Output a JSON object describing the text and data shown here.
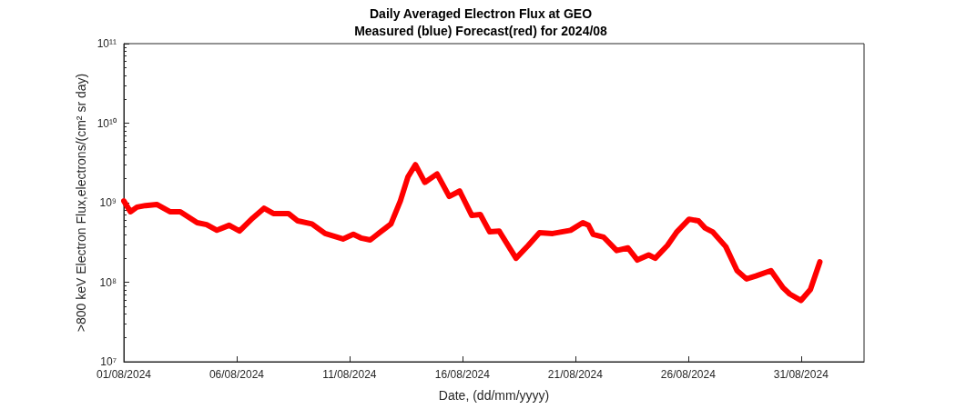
{
  "chart_data": {
    "type": "line",
    "title": "Daily Averaged Electron Flux at GEO",
    "subtitle": "Measured (blue) Forecast(red) for 2024/08",
    "xlabel": "Date, (dd/mm/yyyy)",
    "ylabel": ">800 keV Electron Flux,electrons/(cm² sr day)",
    "x": [
      "2024-08-01T00:00",
      "2024-08-01T07:00",
      "2024-08-01T14:00",
      "2024-08-01T23:00",
      "2024-08-02T11:00",
      "2024-08-03T01:00",
      "2024-08-03T12:00",
      "2024-08-04T06:00",
      "2024-08-04T16:00",
      "2024-08-05T03:00",
      "2024-08-05T16:00",
      "2024-08-06T03:00",
      "2024-08-06T17:00",
      "2024-08-07T05:00",
      "2024-08-07T15:00",
      "2024-08-08T07:00",
      "2024-08-08T17:00",
      "2024-08-09T08:00",
      "2024-08-09T22:00",
      "2024-08-10T17:00",
      "2024-08-11T04:00",
      "2024-08-11T12:00",
      "2024-08-11T22:00",
      "2024-08-12T08:00",
      "2024-08-12T20:00",
      "2024-08-13T06:00",
      "2024-08-13T14:00",
      "2024-08-13T22:00",
      "2024-08-14T08:00",
      "2024-08-14T21:00",
      "2024-08-15T10:00",
      "2024-08-15T21:00",
      "2024-08-16T10:00",
      "2024-08-16T19:00",
      "2024-08-17T05:00",
      "2024-08-17T15:00",
      "2024-08-18T09:00",
      "2024-08-18T22:00",
      "2024-08-19T10:00",
      "2024-08-20T00:00",
      "2024-08-20T19:00",
      "2024-08-21T08:00",
      "2024-08-21T14:00",
      "2024-08-21T19:00",
      "2024-08-22T06:00",
      "2024-08-22T20:00",
      "2024-08-23T08:00",
      "2024-08-23T18:00",
      "2024-08-24T06:00",
      "2024-08-24T13:00",
      "2024-08-25T02:00",
      "2024-08-25T12:00",
      "2024-08-26T01:00",
      "2024-08-26T11:00",
      "2024-08-26T18:00",
      "2024-08-27T02:00",
      "2024-08-27T16:00",
      "2024-08-28T04:00",
      "2024-08-28T14:00",
      "2024-08-29T00:00",
      "2024-08-29T16:00",
      "2024-08-30T05:00",
      "2024-08-30T12:00",
      "2024-08-31T00:00",
      "2024-08-31T10:00",
      "2024-08-31T20:00"
    ],
    "series": [
      {
        "color": "#ff0000",
        "values": [
          1050000000.0,
          770000000.0,
          880000000.0,
          920000000.0,
          950000000.0,
          770000000.0,
          770000000.0,
          560000000.0,
          530000000.0,
          450000000.0,
          520000000.0,
          440000000.0,
          640000000.0,
          850000000.0,
          730000000.0,
          730000000.0,
          590000000.0,
          540000000.0,
          410000000.0,
          350000000.0,
          400000000.0,
          360000000.0,
          340000000.0,
          420000000.0,
          540000000.0,
          1050000000.0,
          2100000000.0,
          3000000000.0,
          1800000000.0,
          2300000000.0,
          1200000000.0,
          1400000000.0,
          690000000.0,
          710000000.0,
          430000000.0,
          440000000.0,
          200000000.0,
          290000000.0,
          420000000.0,
          410000000.0,
          450000000.0,
          560000000.0,
          520000000.0,
          400000000.0,
          370000000.0,
          250000000.0,
          270000000.0,
          190000000.0,
          220000000.0,
          200000000.0,
          290000000.0,
          430000000.0,
          620000000.0,
          590000000.0,
          480000000.0,
          430000000.0,
          280000000.0,
          140000000.0,
          110000000.0,
          120000000.0,
          140000000.0,
          85000000.0,
          71000000.0,
          59000000.0,
          81000000.0,
          180000000.0
        ]
      }
    ],
    "xlim": [
      "2024-08-01T00:00",
      "2024-09-02T19:00"
    ],
    "xticks": [
      {
        "value": "2024-08-01T00:00",
        "label": "01/08/2024"
      },
      {
        "value": "2024-08-06T00:00",
        "label": "06/08/2024"
      },
      {
        "value": "2024-08-11T00:00",
        "label": "11/08/2024"
      },
      {
        "value": "2024-08-16T00:00",
        "label": "16/08/2024"
      },
      {
        "value": "2024-08-21T00:00",
        "label": "21/08/2024"
      },
      {
        "value": "2024-08-26T00:00",
        "label": "26/08/2024"
      },
      {
        "value": "2024-08-31T00:00",
        "label": "31/08/2024"
      }
    ],
    "ylim": [
      10000000.0,
      100000000000.0
    ],
    "yticks": [
      {
        "value": 10000000.0,
        "label": "10⁷"
      },
      {
        "value": 100000000.0,
        "label": "10⁸"
      },
      {
        "value": 1000000000.0,
        "label": "10⁹"
      },
      {
        "value": 10000000000.0,
        "label": "10¹⁰"
      },
      {
        "value": 100000000000.0,
        "label": "10¹¹"
      }
    ],
    "log": "y",
    "grid": false,
    "marker": "none",
    "line_style": "solid"
  }
}
